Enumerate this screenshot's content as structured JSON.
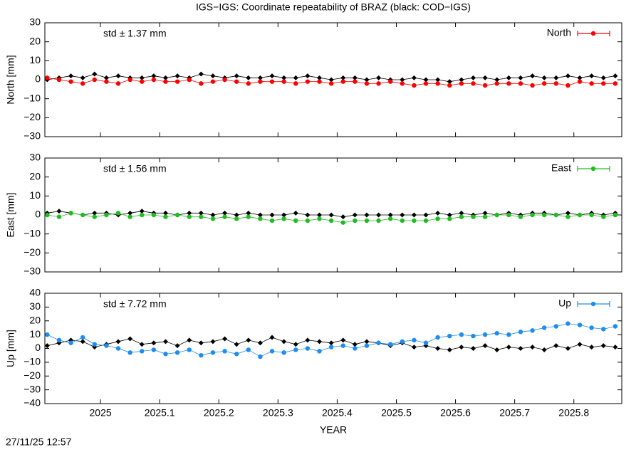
{
  "title": "IGS−IGS: Coordinate repeatability of BRAZ (black: COD−IGS)",
  "timestamp": "27/11/25 12:57",
  "chart_data": [
    {
      "type": "line",
      "ylabel": "North [mm]",
      "annotation": "std ± 1.37 mm",
      "annotation_color": "#ff0000",
      "legend": "upper right",
      "xlim": [
        2024.906,
        2025.881
      ],
      "xticks": [
        2025,
        2025.1,
        2025.2,
        2025.3,
        2025.4,
        2025.5,
        2025.6,
        2025.7,
        2025.8
      ],
      "ylim": [
        -30,
        30
      ],
      "yticks": [
        {
          "value": -30,
          "label": "−30"
        },
        {
          "value": -20,
          "label": "−20"
        },
        {
          "value": -10,
          "label": "−10"
        },
        0,
        10,
        20,
        30
      ],
      "x": [
        2024.91,
        2024.93,
        2024.95,
        2024.97,
        2024.99,
        2025.01,
        2025.03,
        2025.05,
        2025.07,
        2025.09,
        2025.11,
        2025.13,
        2025.15,
        2025.17,
        2025.19,
        2025.21,
        2025.23,
        2025.25,
        2025.27,
        2025.29,
        2025.31,
        2025.33,
        2025.35,
        2025.37,
        2025.39,
        2025.41,
        2025.43,
        2025.45,
        2025.47,
        2025.49,
        2025.51,
        2025.53,
        2025.55,
        2025.57,
        2025.59,
        2025.61,
        2025.63,
        2025.65,
        2025.67,
        2025.69,
        2025.71,
        2025.73,
        2025.75,
        2025.77,
        2025.79,
        2025.81,
        2025.83,
        2025.85,
        2025.87
      ],
      "series": [
        {
          "color": "#000000",
          "marker": "diamond",
          "values": [
            0,
            1,
            2,
            1,
            3,
            1,
            2,
            1,
            1,
            2,
            1,
            2,
            1,
            3,
            2,
            1,
            2,
            1,
            1,
            2,
            1,
            1,
            2,
            1,
            0,
            1,
            1,
            0,
            1,
            0,
            0,
            1,
            0,
            0,
            -1,
            0,
            1,
            1,
            0,
            1,
            1,
            2,
            1,
            1,
            2,
            1,
            2,
            1,
            2
          ]
        },
        {
          "name": "North",
          "color": "#ff0000",
          "marker": "circle",
          "values": [
            1,
            0,
            -1,
            -2,
            0,
            -1,
            -2,
            0,
            -1,
            0,
            -1,
            -1,
            0,
            -2,
            -1,
            0,
            -1,
            -2,
            -1,
            -1,
            -1,
            -2,
            -1,
            -1,
            -2,
            -1,
            -1,
            -2,
            -2,
            -1,
            -2,
            -3,
            -2,
            -2,
            -3,
            -2,
            -2,
            -3,
            -2,
            -2,
            -2,
            -3,
            -2,
            -2,
            -3,
            -1,
            -2,
            -2,
            -2
          ]
        }
      ]
    },
    {
      "type": "line",
      "ylabel": "East [mm]",
      "annotation": "std ± 1.56 mm",
      "annotation_color": "#22bb22",
      "legend": "upper right",
      "xlim": [
        2024.906,
        2025.881
      ],
      "xticks": [
        2025,
        2025.1,
        2025.2,
        2025.3,
        2025.4,
        2025.5,
        2025.6,
        2025.7,
        2025.8
      ],
      "ylim": [
        -30,
        30
      ],
      "yticks": [
        {
          "value": -30,
          "label": "−30"
        },
        {
          "value": -20,
          "label": "−20"
        },
        {
          "value": -10,
          "label": "−10"
        },
        0,
        10,
        20,
        30
      ],
      "x": [
        2024.91,
        2024.93,
        2024.95,
        2024.97,
        2024.99,
        2025.01,
        2025.03,
        2025.05,
        2025.07,
        2025.09,
        2025.11,
        2025.13,
        2025.15,
        2025.17,
        2025.19,
        2025.21,
        2025.23,
        2025.25,
        2025.27,
        2025.29,
        2025.31,
        2025.33,
        2025.35,
        2025.37,
        2025.39,
        2025.41,
        2025.43,
        2025.45,
        2025.47,
        2025.49,
        2025.51,
        2025.53,
        2025.55,
        2025.57,
        2025.59,
        2025.61,
        2025.63,
        2025.65,
        2025.67,
        2025.69,
        2025.71,
        2025.73,
        2025.75,
        2025.77,
        2025.79,
        2025.81,
        2025.83,
        2025.85,
        2025.87
      ],
      "series": [
        {
          "color": "#000000",
          "marker": "diamond",
          "values": [
            1,
            2,
            1,
            0,
            1,
            1,
            0,
            1,
            2,
            1,
            1,
            0,
            1,
            1,
            0,
            1,
            0,
            1,
            0,
            0,
            0,
            1,
            0,
            0,
            0,
            -1,
            0,
            0,
            0,
            0,
            0,
            0,
            0,
            1,
            0,
            1,
            0,
            1,
            0,
            1,
            0,
            1,
            1,
            0,
            1,
            0,
            1,
            0,
            1
          ]
        },
        {
          "name": "East",
          "color": "#22bb22",
          "marker": "circle",
          "values": [
            0,
            -1,
            1,
            0,
            -1,
            0,
            1,
            -1,
            0,
            0,
            -1,
            0,
            -1,
            -1,
            -2,
            -1,
            -2,
            -1,
            -2,
            -3,
            -2,
            -3,
            -3,
            -2,
            -3,
            -4,
            -3,
            -3,
            -3,
            -2,
            -3,
            -3,
            -3,
            -2,
            -2,
            -1,
            -1,
            -1,
            0,
            0,
            -1,
            0,
            0,
            0,
            -1,
            0,
            0,
            -1,
            0
          ]
        }
      ]
    },
    {
      "type": "line",
      "ylabel": "Up [mm]",
      "annotation": "std ± 7.72 mm",
      "annotation_color": "#1e8cf0",
      "legend": "upper right",
      "xlabel": "YEAR",
      "xlim": [
        2024.906,
        2025.881
      ],
      "xticks": [
        2025,
        2025.1,
        2025.2,
        2025.3,
        2025.4,
        2025.5,
        2025.6,
        2025.7,
        2025.8
      ],
      "ylim": [
        -40,
        40
      ],
      "yticks": [
        {
          "value": -40,
          "label": "−40"
        },
        {
          "value": -30,
          "label": "−30"
        },
        {
          "value": -20,
          "label": "−20"
        },
        {
          "value": -10,
          "label": "−10"
        },
        0,
        10,
        20,
        30,
        40
      ],
      "x": [
        2024.91,
        2024.93,
        2024.95,
        2024.97,
        2024.99,
        2025.01,
        2025.03,
        2025.05,
        2025.07,
        2025.09,
        2025.11,
        2025.13,
        2025.15,
        2025.17,
        2025.19,
        2025.21,
        2025.23,
        2025.25,
        2025.27,
        2025.29,
        2025.31,
        2025.33,
        2025.35,
        2025.37,
        2025.39,
        2025.41,
        2025.43,
        2025.45,
        2025.47,
        2025.49,
        2025.51,
        2025.53,
        2025.55,
        2025.57,
        2025.59,
        2025.61,
        2025.63,
        2025.65,
        2025.67,
        2025.69,
        2025.71,
        2025.73,
        2025.75,
        2025.77,
        2025.79,
        2025.81,
        2025.83,
        2025.85,
        2025.87
      ],
      "series": [
        {
          "color": "#000000",
          "marker": "diamond",
          "values": [
            2,
            4,
            6,
            5,
            1,
            3,
            5,
            7,
            3,
            4,
            5,
            2,
            6,
            4,
            5,
            7,
            3,
            6,
            4,
            8,
            5,
            3,
            6,
            5,
            4,
            6,
            3,
            5,
            4,
            2,
            4,
            1,
            2,
            0,
            -1,
            1,
            0,
            2,
            -1,
            1,
            0,
            1,
            -1,
            2,
            0,
            3,
            1,
            2,
            1
          ]
        },
        {
          "name": "Up",
          "color": "#1e8cf0",
          "marker": "circle",
          "values": [
            10,
            6,
            4,
            8,
            3,
            2,
            0,
            -3,
            -2,
            -1,
            -4,
            -3,
            -1,
            -5,
            -3,
            -2,
            -4,
            -1,
            -6,
            -2,
            -3,
            -1,
            0,
            -2,
            1,
            2,
            0,
            2,
            4,
            3,
            5,
            6,
            4,
            8,
            9,
            10,
            9,
            10,
            11,
            10,
            12,
            13,
            15,
            16,
            18,
            17,
            15,
            14,
            16
          ]
        }
      ]
    }
  ]
}
